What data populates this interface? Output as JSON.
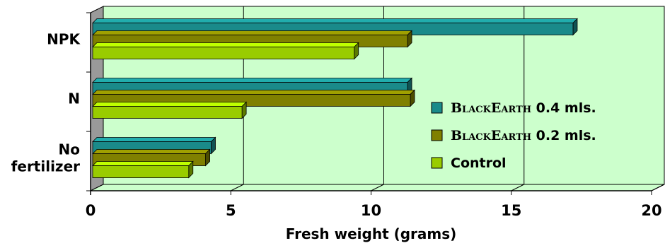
{
  "chart_data": {
    "type": "bar",
    "orientation": "horizontal",
    "categories": [
      "No fertilizer",
      "N",
      "NPK"
    ],
    "category_lines": [
      [
        "No",
        "fertilizer"
      ],
      [
        "N"
      ],
      [
        "NPK"
      ]
    ],
    "series": [
      {
        "name": "BlackEarth 0.4 mls.",
        "name_parts": [
          "BlackEarth",
          " 0.4 mls."
        ],
        "values": [
          4.3,
          11.3,
          17.2
        ],
        "color": "#1a8a8a"
      },
      {
        "name": "BlackEarth 0.2 mls.",
        "name_parts": [
          "BlackEarth",
          " 0.2 mls."
        ],
        "values": [
          4.1,
          11.4,
          11.3
        ],
        "color": "#808000"
      },
      {
        "name": "Control",
        "name_parts": [
          "",
          "Control"
        ],
        "values": [
          3.5,
          5.4,
          9.4
        ],
        "color": "#99cc00"
      }
    ],
    "xlabel": "Fresh weight (grams)",
    "ylabel": "",
    "xlim": [
      0,
      20
    ],
    "xticks": [
      "0",
      "5",
      "10",
      "15",
      "20"
    ],
    "grid": true,
    "legend_position": "right",
    "plot_background": "#ccffcc",
    "floor_color": "#9a9a9a"
  }
}
